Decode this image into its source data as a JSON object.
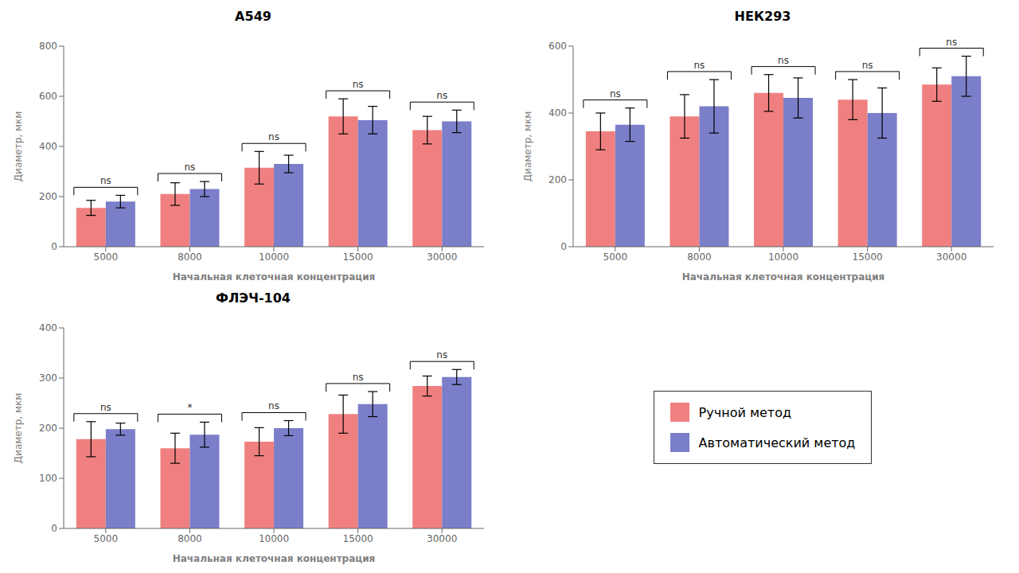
{
  "chart_data": [
    {
      "type": "bar",
      "title": "A549",
      "xlabel": "Начальная клеточная концентрация",
      "ylabel": "Диаметр, мкм",
      "categories": [
        "5000",
        "8000",
        "10000",
        "15000",
        "30000"
      ],
      "series": [
        {
          "name": "Ручной метод",
          "color": "#F08080",
          "values": [
            155,
            210,
            315,
            520,
            465
          ],
          "errors": [
            30,
            45,
            65,
            70,
            55
          ]
        },
        {
          "name": "Автоматический метод",
          "color": "#7B7EC8",
          "values": [
            180,
            230,
            330,
            505,
            500
          ],
          "errors": [
            25,
            30,
            35,
            55,
            45
          ]
        }
      ],
      "annotations": [
        "ns",
        "ns",
        "ns",
        "ns",
        "ns"
      ],
      "ylim": [
        0,
        800
      ],
      "yticks": [
        0,
        200,
        400,
        600,
        800
      ],
      "grid": false
    },
    {
      "type": "bar",
      "title": "НЕК293",
      "xlabel": "Начальная клеточная концентрация",
      "ylabel": "Диаметр, мкм",
      "categories": [
        "5000",
        "8000",
        "10000",
        "15000",
        "30000"
      ],
      "series": [
        {
          "name": "Ручной метод",
          "color": "#F08080",
          "values": [
            345,
            390,
            460,
            440,
            485
          ],
          "errors": [
            55,
            65,
            55,
            60,
            50
          ]
        },
        {
          "name": "Автоматический метод",
          "color": "#7B7EC8",
          "values": [
            365,
            420,
            445,
            400,
            510
          ],
          "errors": [
            50,
            80,
            60,
            75,
            60
          ]
        }
      ],
      "annotations": [
        "ns",
        "ns",
        "ns",
        "ns",
        "ns"
      ],
      "ylim": [
        0,
        600
      ],
      "yticks": [
        0,
        200,
        400,
        600
      ],
      "grid": false
    },
    {
      "type": "bar",
      "title": "ФЛЭЧ-104",
      "xlabel": "Начальная клеточная концентрация",
      "ylabel": "Диаметр, мкм",
      "categories": [
        "5000",
        "8000",
        "10000",
        "15000",
        "30000"
      ],
      "series": [
        {
          "name": "Ручной метод",
          "color": "#F08080",
          "values": [
            178,
            160,
            173,
            228,
            284
          ],
          "errors": [
            35,
            30,
            28,
            38,
            20
          ]
        },
        {
          "name": "Автоматический метод",
          "color": "#7B7EC8",
          "values": [
            198,
            187,
            200,
            248,
            302
          ],
          "errors": [
            12,
            25,
            15,
            25,
            15
          ]
        }
      ],
      "annotations": [
        "ns",
        "*",
        "ns",
        "ns",
        "ns"
      ],
      "ylim": [
        0,
        400
      ],
      "yticks": [
        0,
        100,
        200,
        300,
        400
      ],
      "grid": false
    }
  ]
}
